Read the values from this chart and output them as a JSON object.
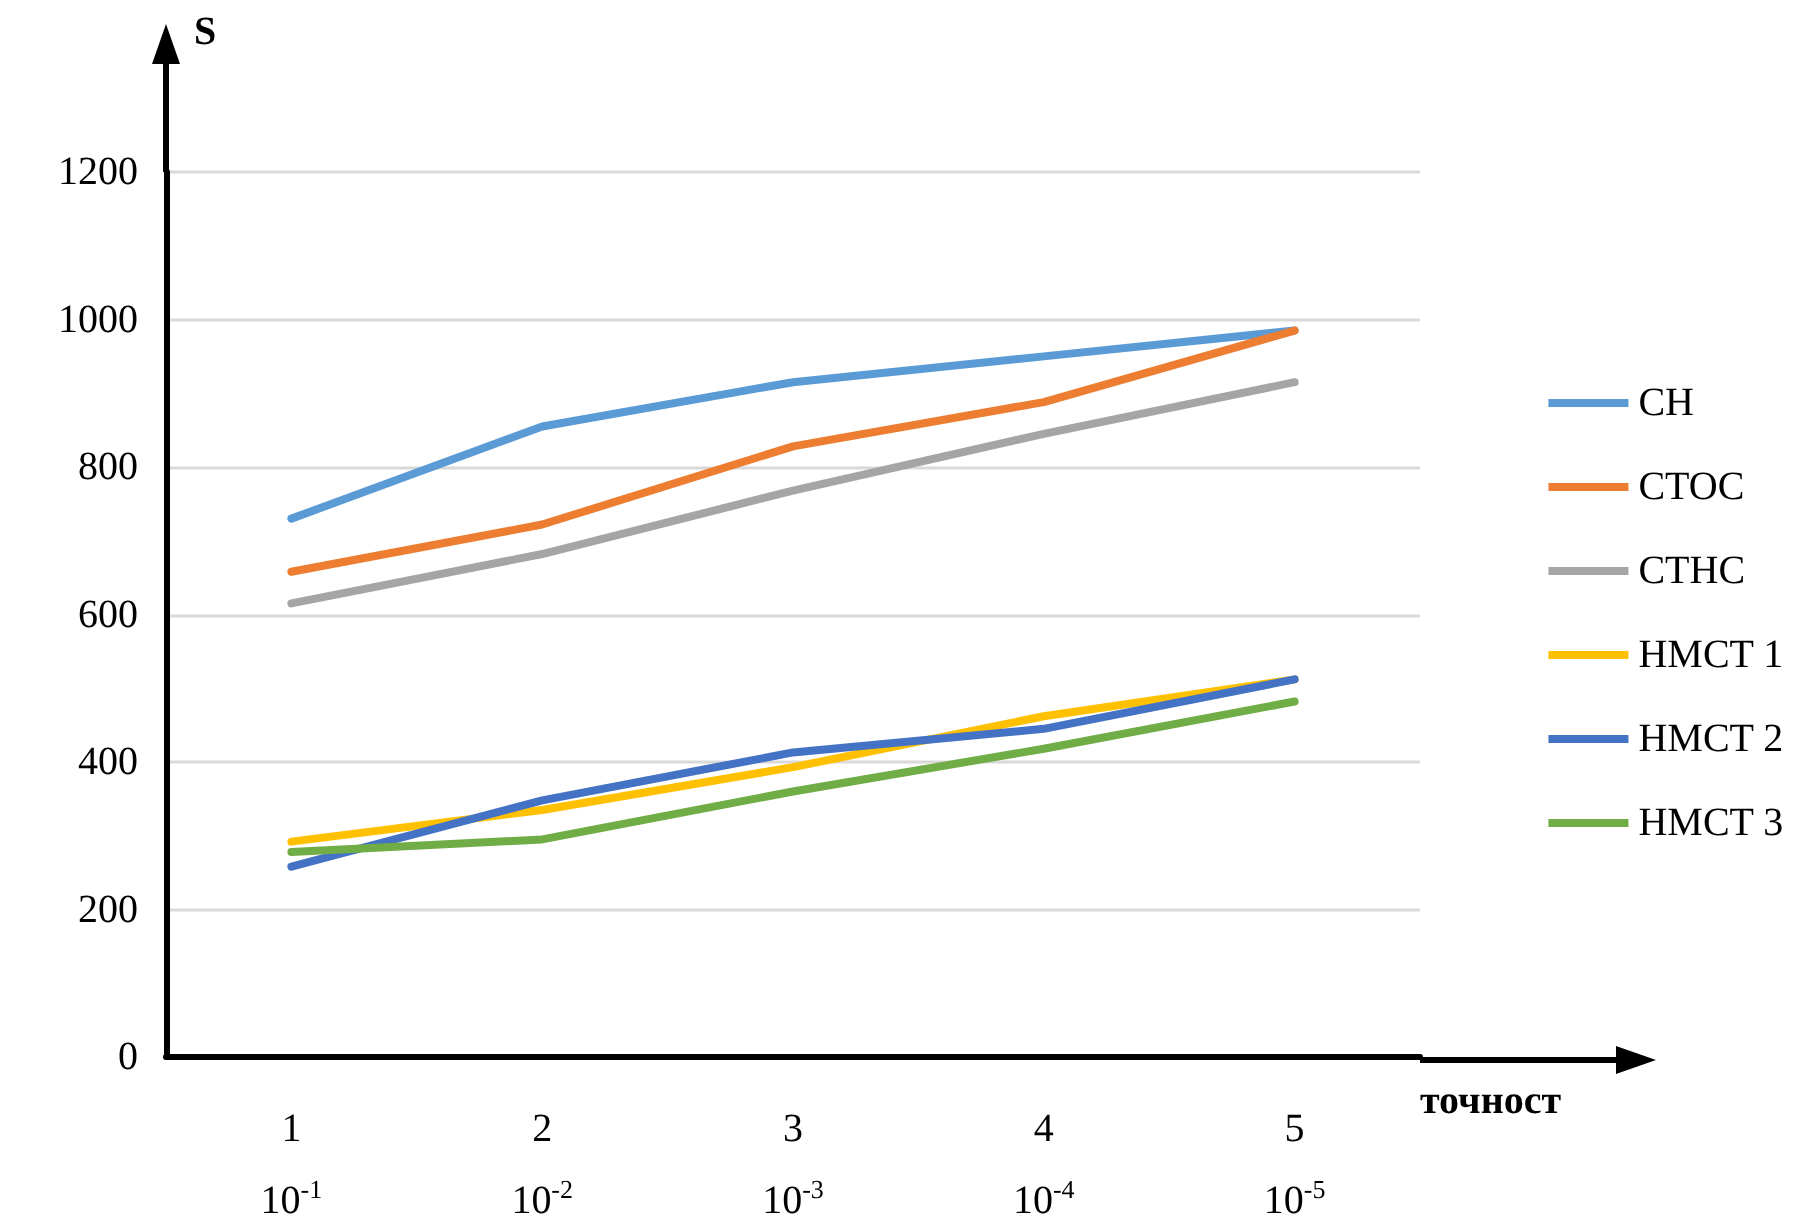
{
  "chart_data": {
    "type": "line",
    "ylabel": "S",
    "xlabel": "точност",
    "categories": [
      "1\n10$^{-1}$",
      "2\n10$^{-2}$",
      "3\n10$^{-3}$",
      "4\n10$^{-4}$",
      "5\n10$^{-5}$"
    ],
    "series": [
      {
        "name": "CH",
        "color": "#5b9bd5",
        "values": [
          730,
          855,
          915,
          950,
          985
        ]
      },
      {
        "name": "CTOC",
        "color": "#ed7d31",
        "values": [
          658,
          722,
          828,
          888,
          985
        ]
      },
      {
        "name": "CTHC",
        "color": "#a5a5a5",
        "values": [
          615,
          682,
          768,
          845,
          915
        ]
      },
      {
        "name": "HMCT 1",
        "color": "#ffc000",
        "values": [
          292,
          335,
          393,
          462,
          512
        ]
      },
      {
        "name": "HMCT 2",
        "color": "#4472c4",
        "values": [
          258,
          348,
          413,
          445,
          512
        ]
      },
      {
        "name": "HMCT 3",
        "color": "#70ad47",
        "values": [
          278,
          295,
          360,
          418,
          482
        ]
      }
    ],
    "ylim": [
      0,
      1200
    ],
    "yticks": [
      0,
      200,
      400,
      600,
      800,
      1000,
      1200
    ],
    "grid": "y",
    "legend": "right",
    "marker": "none",
    "line_style": "solid"
  }
}
